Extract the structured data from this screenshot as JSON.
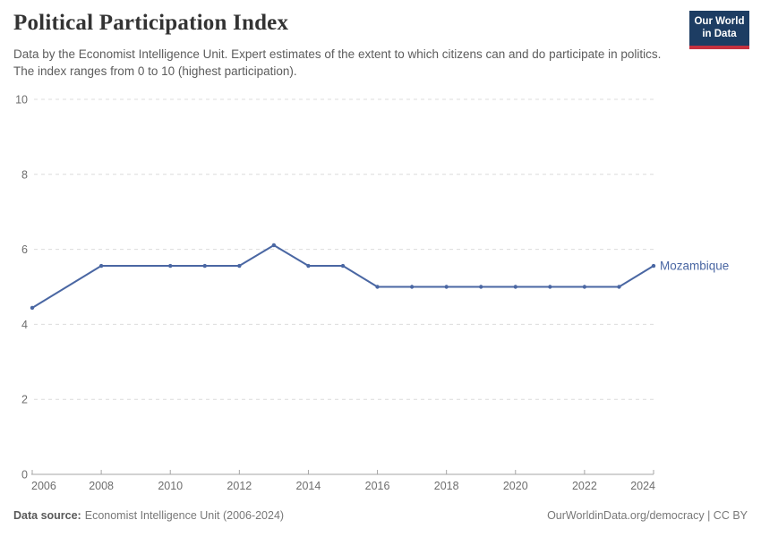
{
  "header": {
    "title": "Political Participation Index",
    "subtitle": "Data by the Economist Intelligence Unit. Expert estimates of the extent to which citizens can and do participate in politics. The index ranges from 0 to 10 (highest participation).",
    "logo": {
      "line1": "Our World",
      "line2": "in Data",
      "bg_color": "#1d3d63",
      "accent_color": "#c5313f"
    }
  },
  "chart_data": {
    "type": "line",
    "title": "Political Participation Index",
    "xlabel": "",
    "ylabel": "",
    "xlim": [
      2006,
      2024
    ],
    "ylim": [
      0,
      10
    ],
    "x_ticks": [
      2006,
      2008,
      2010,
      2012,
      2014,
      2016,
      2018,
      2020,
      2022,
      2024
    ],
    "y_ticks": [
      0,
      2,
      4,
      6,
      8,
      10
    ],
    "grid": "dashed horizontal gridlines, solid x axis",
    "legend_position": "inline label at end of line",
    "series": [
      {
        "name": "Mozambique",
        "color": "#4a67a3",
        "years": [
          2006,
          2008,
          2010,
          2011,
          2012,
          2013,
          2014,
          2015,
          2016,
          2017,
          2018,
          2019,
          2020,
          2021,
          2022,
          2023,
          2024
        ],
        "values": [
          4.44,
          5.56,
          5.56,
          5.56,
          5.56,
          6.11,
          5.56,
          5.56,
          5,
          5,
          5,
          5,
          5,
          5,
          5,
          5,
          5.56
        ]
      }
    ]
  },
  "footer": {
    "source_label": "Data source:",
    "source_value": "Economist Intelligence Unit (2006-2024)",
    "license": "OurWorldinData.org/democracy | CC BY"
  }
}
